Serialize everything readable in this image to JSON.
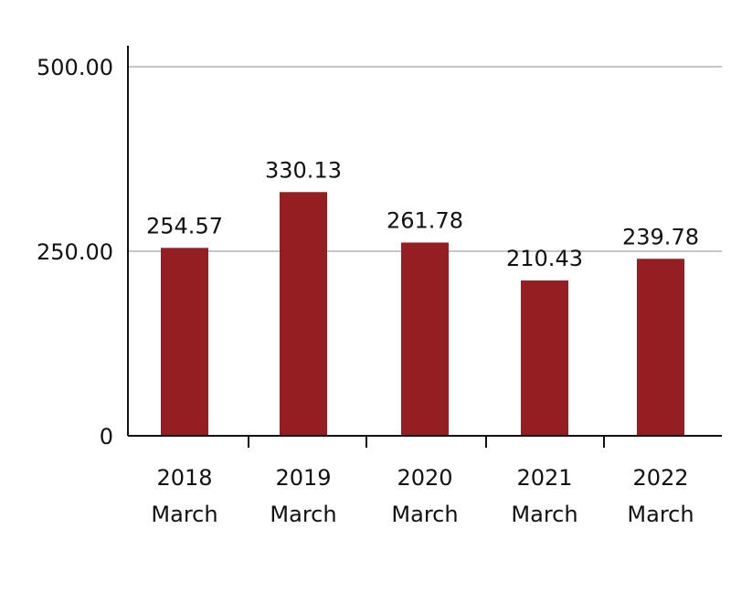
{
  "chart_data": {
    "type": "bar",
    "categories": [
      [
        "2018",
        "March"
      ],
      [
        "2019",
        "March"
      ],
      [
        "2020",
        "March"
      ],
      [
        "2021",
        "March"
      ],
      [
        "2022",
        "March"
      ]
    ],
    "values": [
      254.57,
      330.13,
      261.78,
      210.43,
      239.78
    ],
    "data_labels": [
      "254.57",
      "330.13",
      "261.78",
      "210.43",
      "239.78"
    ],
    "yticks": [
      0,
      250,
      500
    ],
    "ytick_labels": [
      "0",
      "250.00",
      "500.00"
    ],
    "ylim": [
      0,
      500
    ],
    "bar_color": "#951e22",
    "grid": true,
    "grid_color": "#b3b3b3",
    "axis_color": "#111111",
    "title": "",
    "xlabel": "",
    "ylabel": ""
  }
}
